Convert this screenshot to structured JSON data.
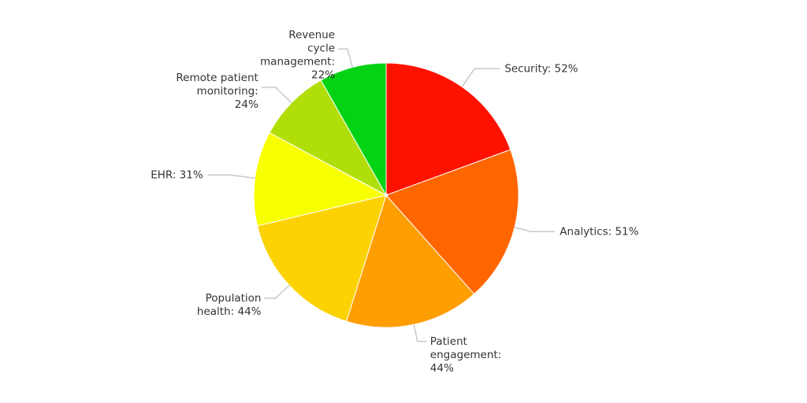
{
  "chart_data": {
    "type": "pie",
    "title": "",
    "categories": [
      "Security",
      "Analytics",
      "Patient engagement",
      "Population health",
      "EHR",
      "Remote patient monitoring",
      "Revenue cycle management"
    ],
    "values": [
      52,
      51,
      44,
      44,
      31,
      24,
      22
    ],
    "value_suffix": "%",
    "labels": [
      [
        "Security: 52%"
      ],
      [
        "Analytics: 51%"
      ],
      [
        "Patient",
        "engagement:",
        "44%"
      ],
      [
        "Population",
        "health: 44%"
      ],
      [
        "EHR: 31%"
      ],
      [
        "Remote patient",
        "monitoring:",
        "24%"
      ],
      [
        "Revenue",
        "cycle",
        "management:",
        "22%"
      ]
    ],
    "colors": [
      "#ff1100",
      "#ff6600",
      "#ff9e01",
      "#fcd202",
      "#f8ff01",
      "#b0de09",
      "#04d215"
    ],
    "start_angle": "12 o'clock",
    "direction": "clockwise",
    "legend": "none",
    "slice_labels": "outside with leader lines"
  }
}
